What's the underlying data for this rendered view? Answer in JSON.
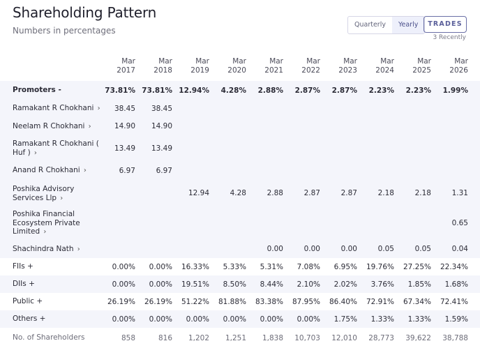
{
  "header": {
    "title": "Shareholding Pattern",
    "subtitle": "Numbers in percentages",
    "tabs": [
      "Quarterly",
      "Yearly"
    ],
    "active_tab": "Yearly",
    "trades_label": "TRADES",
    "trades_note": "3 Recently"
  },
  "columns": [
    [
      "Mar",
      "2017"
    ],
    [
      "Mar",
      "2018"
    ],
    [
      "Mar",
      "2019"
    ],
    [
      "Mar",
      "2020"
    ],
    [
      "Mar",
      "2021"
    ],
    [
      "Mar",
      "2022"
    ],
    [
      "Mar",
      "2023"
    ],
    [
      "Mar",
      "2024"
    ],
    [
      "Mar",
      "2025"
    ],
    [
      "Mar",
      "2026"
    ]
  ],
  "rows": [
    {
      "label": [
        "Promoters -"
      ],
      "values": [
        "73.81%",
        "73.81%",
        "12.94%",
        "4.28%",
        "2.88%",
        "2.87%",
        "2.87%",
        "2.23%",
        "2.23%",
        "1.99%"
      ],
      "style": "bold"
    },
    {
      "label": [
        "Ramakant R Chokhani"
      ],
      "values": [
        "38.45",
        "38.45",
        "",
        "",
        "",
        "",
        "",
        "",
        "",
        ""
      ],
      "style": "sub"
    },
    {
      "label": [
        "Neelam R Chokhani"
      ],
      "values": [
        "14.90",
        "14.90",
        "",
        "",
        "",
        "",
        "",
        "",
        "",
        ""
      ],
      "style": "sub"
    },
    {
      "label": [
        "Ramakant R Chokhani (",
        "Huf )"
      ],
      "values": [
        "13.49",
        "13.49",
        "",
        "",
        "",
        "",
        "",
        "",
        "",
        ""
      ],
      "style": "sub"
    },
    {
      "label": [
        "Anand R Chokhani"
      ],
      "values": [
        "6.97",
        "6.97",
        "",
        "",
        "",
        "",
        "",
        "",
        "",
        ""
      ],
      "style": "sub"
    },
    {
      "label": [
        "Poshika Advisory",
        "Services Llp"
      ],
      "values": [
        "",
        "",
        "12.94",
        "4.28",
        "2.88",
        "2.87",
        "2.87",
        "2.18",
        "2.18",
        "1.31"
      ],
      "style": "sub"
    },
    {
      "label": [
        "Poshika Financial",
        "Ecosystem Private",
        "Limited"
      ],
      "values": [
        "",
        "",
        "",
        "",
        "",
        "",
        "",
        "",
        "",
        "0.65"
      ],
      "style": "sub"
    },
    {
      "label": [
        "Shachindra Nath"
      ],
      "values": [
        "",
        "",
        "",
        "",
        "0.00",
        "0.00",
        "0.00",
        "0.05",
        "0.05",
        "0.04"
      ],
      "style": "sub"
    },
    {
      "label": [
        "FIIs +"
      ],
      "values": [
        "0.00%",
        "0.00%",
        "16.33%",
        "5.33%",
        "5.31%",
        "7.08%",
        "6.95%",
        "19.76%",
        "27.25%",
        "22.34%"
      ],
      "style": "plain"
    },
    {
      "label": [
        "DIIs +"
      ],
      "values": [
        "0.00%",
        "0.00%",
        "19.51%",
        "8.50%",
        "8.44%",
        "2.10%",
        "2.02%",
        "3.76%",
        "1.85%",
        "1.68%"
      ],
      "style": "band"
    },
    {
      "label": [
        "Public +"
      ],
      "values": [
        "26.19%",
        "26.19%",
        "51.22%",
        "81.88%",
        "83.38%",
        "87.95%",
        "86.40%",
        "72.91%",
        "67.34%",
        "72.41%"
      ],
      "style": "plain"
    },
    {
      "label": [
        "Others +"
      ],
      "values": [
        "0.00%",
        "0.00%",
        "0.00%",
        "0.00%",
        "0.00%",
        "0.00%",
        "1.75%",
        "1.33%",
        "1.33%",
        "1.59%"
      ],
      "style": "band"
    },
    {
      "label": [
        "No. of Shareholders"
      ],
      "values": [
        "858",
        "816",
        "1,202",
        "1,251",
        "1,838",
        "10,703",
        "12,010",
        "28,773",
        "39,622",
        "38,788"
      ],
      "style": "muted"
    }
  ]
}
